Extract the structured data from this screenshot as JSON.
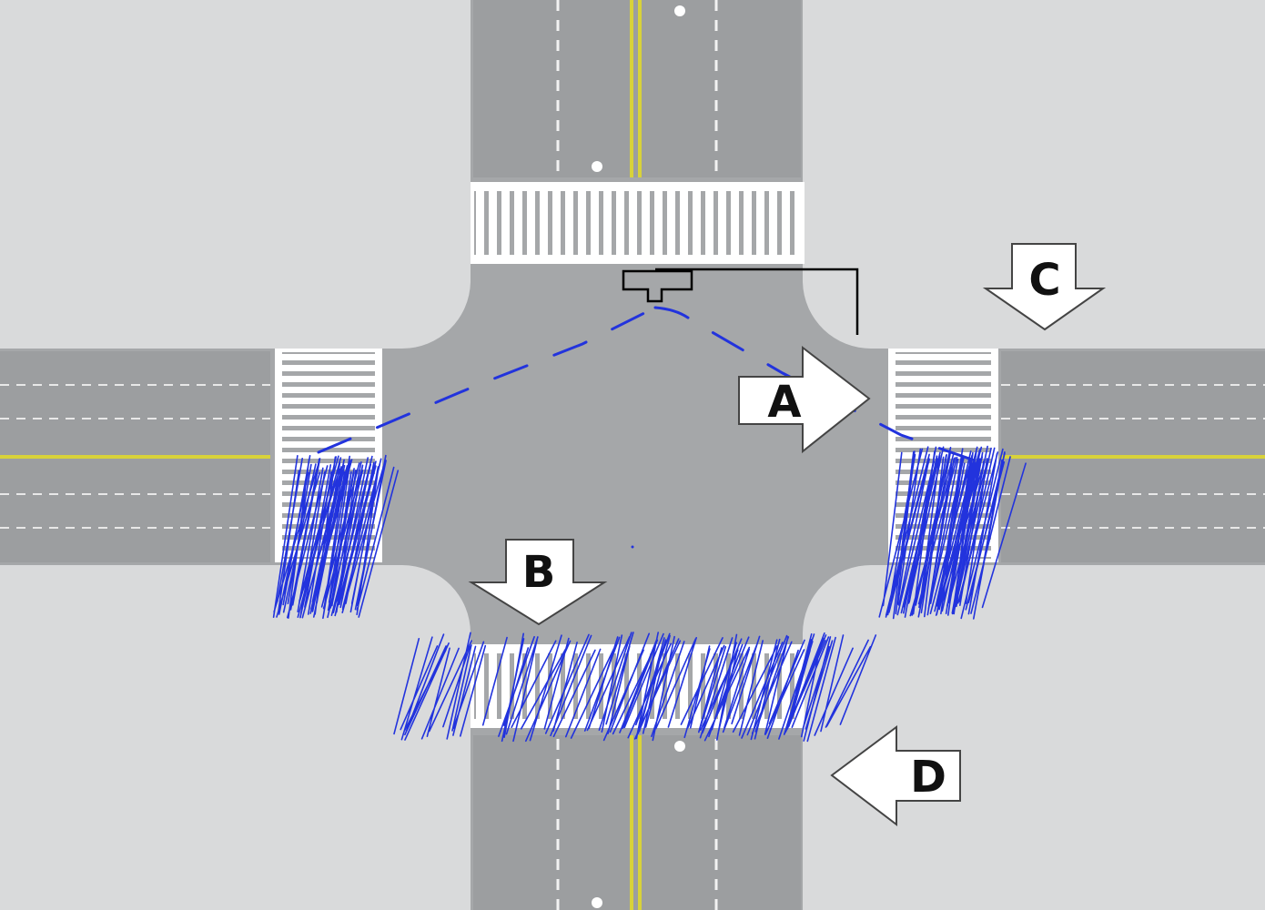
{
  "diagram": {
    "arrows": [
      {
        "id": "a",
        "label": "A",
        "direction": "right"
      },
      {
        "id": "b",
        "label": "B",
        "direction": "down"
      },
      {
        "id": "c",
        "label": "C",
        "direction": "down"
      },
      {
        "id": "d",
        "label": "D",
        "direction": "left"
      }
    ],
    "colors": {
      "background": "#d9dadb",
      "road": "#a5a7a9",
      "center_line": "#d8d23a",
      "crosswalk_stripe": "#ffffff",
      "annotation_ink": "#2233dd",
      "bracket_ink": "#000000"
    }
  }
}
